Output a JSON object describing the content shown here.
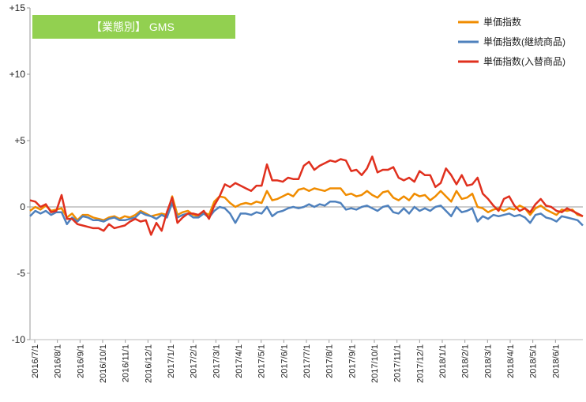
{
  "chart_data": {
    "type": "line",
    "title": "【業態別】 GMS",
    "title_bg_color": "#92D050",
    "ylim": [
      -10,
      15
    ],
    "yticks": [
      {
        "value": 15,
        "label": "+15"
      },
      {
        "value": 10,
        "label": "+10"
      },
      {
        "value": 5,
        "label": "+5"
      },
      {
        "value": 0,
        "label": "0"
      },
      {
        "value": -5,
        "label": "-5"
      },
      {
        "value": -10,
        "label": "-10"
      }
    ],
    "x_count": 106,
    "xtick_labels": [
      "2016/7/1",
      "2016/8/1",
      "2016/9/1",
      "2016/10/1",
      "2016/11/1",
      "2016/12/1",
      "2017/1/1",
      "2017/2/1",
      "2017/3/1",
      "2017/4/1",
      "2017/5/1",
      "2017/6/1",
      "2017/7/1",
      "2017/8/1",
      "2017/9/1",
      "2017/10/1",
      "2017/11/1",
      "2017/12/1",
      "2018/1/1",
      "2018/2/1",
      "2018/3/1",
      "2018/4/1",
      "2018/5/1",
      "2018/6/1"
    ],
    "grid": {
      "horizontal": false,
      "vertical": false
    },
    "legend": "top-right",
    "series": [
      {
        "name": "単価指数",
        "color": "#F08C00",
        "values": [
          -0.3,
          0.0,
          -0.2,
          0.1,
          -0.3,
          -0.2,
          -0.1,
          -0.8,
          -0.5,
          -1.0,
          -0.6,
          -0.6,
          -0.8,
          -0.9,
          -1.0,
          -0.8,
          -0.7,
          -0.9,
          -0.7,
          -0.8,
          -0.6,
          -0.3,
          -0.5,
          -0.7,
          -0.6,
          -0.5,
          -0.6,
          0.8,
          -0.6,
          -0.4,
          -0.3,
          -0.6,
          -0.7,
          -0.4,
          -0.6,
          0.4,
          0.8,
          0.7,
          0.3,
          0.0,
          0.2,
          0.3,
          0.2,
          0.4,
          0.3,
          1.2,
          0.5,
          0.6,
          0.8,
          1.0,
          0.8,
          1.3,
          1.4,
          1.2,
          1.4,
          1.3,
          1.2,
          1.4,
          1.4,
          1.4,
          0.9,
          1.0,
          0.8,
          0.9,
          1.2,
          0.9,
          0.7,
          1.1,
          1.2,
          0.7,
          0.5,
          0.8,
          0.5,
          1.0,
          0.8,
          0.9,
          0.5,
          0.8,
          1.2,
          0.8,
          0.4,
          1.2,
          0.6,
          0.7,
          1.0,
          0.0,
          -0.1,
          -0.4,
          -0.2,
          -0.1,
          -0.3,
          -0.1,
          -0.2,
          0.1,
          -0.1,
          -0.6,
          -0.1,
          0.1,
          -0.2,
          -0.4,
          -0.6,
          -0.2,
          -0.3,
          -0.2,
          -0.6,
          -0.7
        ]
      },
      {
        "name": "単価指数(継続商品)",
        "color": "#4F81BD",
        "values": [
          -0.7,
          -0.3,
          -0.5,
          -0.3,
          -0.6,
          -0.4,
          -0.4,
          -1.3,
          -0.8,
          -1.1,
          -0.7,
          -0.8,
          -1.0,
          -1.0,
          -1.1,
          -0.9,
          -0.8,
          -1.0,
          -1.0,
          -0.9,
          -0.8,
          -0.4,
          -0.6,
          -0.7,
          -0.9,
          -0.6,
          -0.8,
          0.3,
          -0.8,
          -0.6,
          -0.5,
          -0.8,
          -0.8,
          -0.5,
          -0.8,
          -0.3,
          0.0,
          -0.1,
          -0.5,
          -1.2,
          -0.5,
          -0.5,
          -0.6,
          -0.4,
          -0.5,
          0.0,
          -0.7,
          -0.4,
          -0.3,
          -0.1,
          0.0,
          -0.1,
          0.0,
          0.2,
          0.0,
          0.2,
          0.1,
          0.4,
          0.4,
          0.3,
          -0.2,
          -0.1,
          -0.2,
          0.0,
          0.1,
          -0.1,
          -0.3,
          0.0,
          0.1,
          -0.4,
          -0.5,
          -0.1,
          -0.5,
          0.0,
          -0.3,
          -0.1,
          -0.3,
          0.0,
          0.1,
          -0.3,
          -0.7,
          0.0,
          -0.4,
          -0.3,
          -0.1,
          -1.1,
          -0.7,
          -0.9,
          -0.6,
          -0.7,
          -0.6,
          -0.5,
          -0.7,
          -0.6,
          -0.8,
          -1.2,
          -0.6,
          -0.5,
          -0.8,
          -0.9,
          -1.1,
          -0.7,
          -0.8,
          -0.9,
          -1.0,
          -1.4
        ]
      },
      {
        "name": "単価指数(入替商品)",
        "color": "#E0301E",
        "values": [
          0.5,
          0.4,
          0.0,
          0.2,
          -0.4,
          -0.3,
          0.9,
          -0.9,
          -0.9,
          -1.3,
          -1.4,
          -1.5,
          -1.6,
          -1.6,
          -1.8,
          -1.3,
          -1.6,
          -1.5,
          -1.4,
          -1.1,
          -0.9,
          -1.1,
          -1.0,
          -2.1,
          -1.2,
          -1.8,
          -0.4,
          0.7,
          -1.2,
          -0.8,
          -0.5,
          -0.5,
          -0.6,
          -0.3,
          -0.9,
          0.1,
          0.8,
          1.7,
          1.5,
          1.8,
          1.6,
          1.4,
          1.2,
          1.6,
          1.6,
          3.2,
          2.0,
          2.0,
          1.9,
          2.2,
          2.1,
          2.1,
          3.1,
          3.4,
          2.8,
          3.1,
          3.3,
          3.5,
          3.4,
          3.6,
          3.5,
          2.7,
          2.8,
          2.4,
          2.9,
          3.8,
          2.6,
          2.8,
          2.8,
          3.0,
          2.2,
          2.0,
          2.2,
          1.9,
          2.7,
          2.4,
          2.4,
          1.5,
          1.8,
          2.9,
          2.4,
          1.7,
          2.4,
          1.6,
          1.7,
          2.2,
          1.0,
          0.6,
          0.1,
          -0.3,
          0.6,
          0.8,
          0.1,
          -0.3,
          -0.1,
          -0.4,
          0.2,
          0.6,
          0.1,
          0.0,
          -0.3,
          -0.4,
          -0.1,
          -0.3,
          -0.5,
          -0.7
        ]
      }
    ]
  }
}
